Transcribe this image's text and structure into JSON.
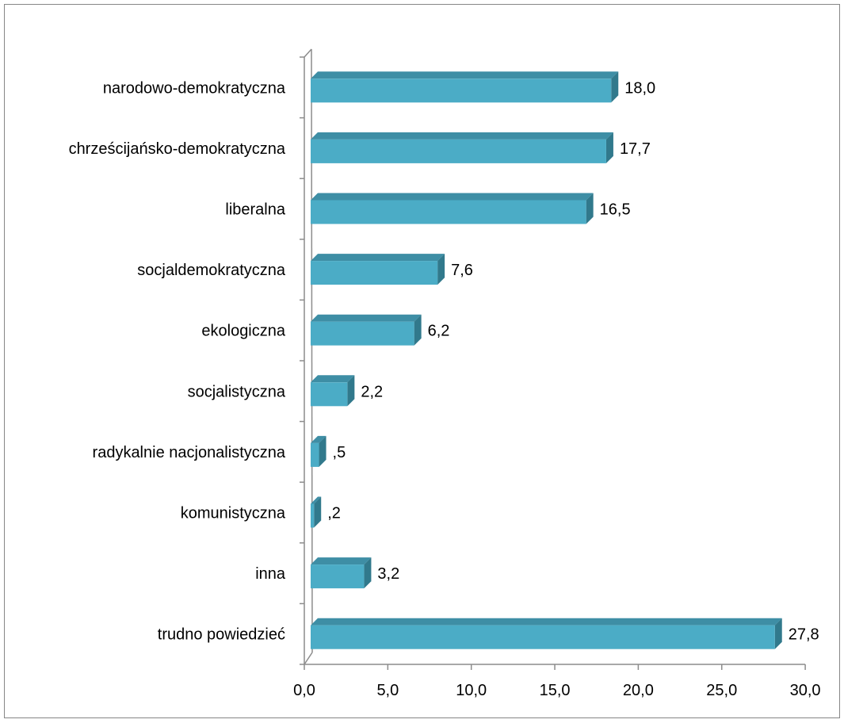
{
  "chart_data": {
    "type": "bar",
    "orientation": "horizontal",
    "style": "3d",
    "categories": [
      "narodowo-demokratyczna",
      "chrześcijańsko-demokratyczna",
      "liberalna",
      "socjaldemokratyczna",
      "ekologiczna",
      "socjalistyczna",
      "radykalnie nacjonalistyczna",
      "komunistyczna",
      "inna",
      "trudno powiedzieć"
    ],
    "values": [
      18.0,
      17.7,
      16.5,
      7.6,
      6.2,
      2.2,
      0.5,
      0.2,
      3.2,
      27.8
    ],
    "value_labels": [
      "18,0",
      "17,7",
      "16,5",
      "7,6",
      "6,2",
      "2,2",
      ",5",
      ",2",
      "3,2",
      "27,8"
    ],
    "x_ticks": [
      "0,0",
      "5,0",
      "10,0",
      "15,0",
      "20,0",
      "25,0",
      "30,0"
    ],
    "xlim": [
      0,
      30
    ],
    "grid": false,
    "legend": "none",
    "title": "",
    "xlabel": "",
    "ylabel": "",
    "colors": {
      "bar_front": "#4bacc6",
      "bar_top": "#3e8ea5",
      "bar_side": "#31798c",
      "axis": "#8c8c8c",
      "border": "#868686"
    }
  }
}
